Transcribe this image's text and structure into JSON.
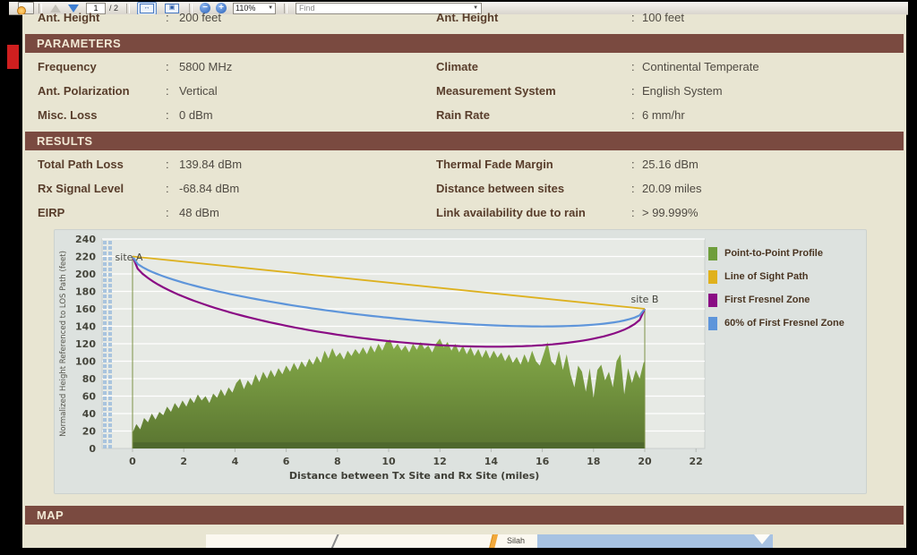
{
  "ui": {
    "colon": ":"
  },
  "toolbar": {
    "page_current": "1",
    "page_total": "/ 2",
    "zoom_level": "110%",
    "find_placeholder": "Find",
    "icons": {
      "zoom_out_glyph": "−",
      "zoom_in_glyph": "+",
      "dropdown_caret": "▼",
      "fit_width_glyph": "↔",
      "fit_page_glyph": "▣"
    }
  },
  "top_row": {
    "left_label": "Ant. Height",
    "left_value": "200 feet",
    "right_label": "Ant. Height",
    "right_value": "100 feet"
  },
  "sections": {
    "parameters": {
      "title": "PARAMETERS",
      "rows": [
        {
          "left_label": "Frequency",
          "left_value": "5800 MHz",
          "right_label": "Climate",
          "right_value": "Continental Temperate"
        },
        {
          "left_label": "Ant. Polarization",
          "left_value": "Vertical",
          "right_label": "Measurement System",
          "right_value": "English System"
        },
        {
          "left_label": "Misc. Loss",
          "left_value": "0 dBm",
          "right_label": "Rain Rate",
          "right_value": "6 mm/hr"
        }
      ]
    },
    "results": {
      "title": "RESULTS",
      "rows": [
        {
          "left_label": "Total Path Loss",
          "left_value": "139.84 dBm",
          "right_label": "Thermal Fade Margin",
          "right_value": "25.16 dBm"
        },
        {
          "left_label": "Rx Signal Level",
          "left_value": "-68.84 dBm",
          "right_label": "Distance between sites",
          "right_value": "20.09 miles"
        },
        {
          "left_label": "EIRP",
          "left_value": "48 dBm",
          "right_label": "Link availability due to rain",
          "right_value": "> 99.999%"
        }
      ]
    },
    "map": {
      "title": "MAP",
      "road_label": "Silah"
    }
  },
  "chart_data": {
    "type": "area",
    "xlabel": "Distance between Tx Site and Rx Site (miles)",
    "ylabel": "Normalized Height Referenced to LOS Path (feet)",
    "xlim": [
      0,
      22
    ],
    "ylim": [
      0,
      240
    ],
    "xticks": [
      0,
      2,
      4,
      6,
      8,
      10,
      12,
      14,
      16,
      18,
      20,
      22
    ],
    "yticks": [
      0,
      20,
      40,
      60,
      80,
      100,
      120,
      140,
      160,
      180,
      200,
      220,
      240
    ],
    "grid": "horizontal-white",
    "legend_position": "right",
    "site_a": {
      "label": "site A",
      "x": 0,
      "antenna_top": 220,
      "terrain": 18
    },
    "site_b": {
      "label": "site B",
      "x": 20,
      "antenna_top": 160,
      "terrain": 100
    },
    "los": {
      "x": [
        0,
        20
      ],
      "y": [
        220,
        160
      ]
    },
    "fresnel": {
      "max_radius_feet": 67,
      "sixty_pct_fraction": 0.6
    },
    "legend": [
      {
        "label": "Point-to-Point Profile",
        "color": "#6f9e3c"
      },
      {
        "label": "Line of Sight Path",
        "color": "#e0b11c"
      },
      {
        "label": "First Fresnel Zone",
        "color": "#8a0c84"
      },
      {
        "label": "60% of First Fresnel Zone",
        "color": "#5e95da"
      }
    ],
    "colors": {
      "plot_bg": "#e7eae5",
      "terrain_top": "#86ac49",
      "terrain_bottom": "#5a7531",
      "terrain_base_bar": "#4e682d",
      "mast": "#7d9148",
      "los": "#ddb11f",
      "fresnel": "#8a0c84",
      "fresnel60": "#5e95da",
      "hatch_blue": "#a9c4de",
      "tick_text": "#45453b"
    },
    "terrain_profile": [
      [
        0,
        18
      ],
      [
        0.15,
        28
      ],
      [
        0.3,
        22
      ],
      [
        0.45,
        35
      ],
      [
        0.6,
        30
      ],
      [
        0.75,
        40
      ],
      [
        0.9,
        33
      ],
      [
        1.05,
        42
      ],
      [
        1.2,
        38
      ],
      [
        1.35,
        48
      ],
      [
        1.5,
        42
      ],
      [
        1.65,
        52
      ],
      [
        1.8,
        46
      ],
      [
        1.95,
        55
      ],
      [
        2.1,
        48
      ],
      [
        2.25,
        58
      ],
      [
        2.4,
        52
      ],
      [
        2.55,
        62
      ],
      [
        2.7,
        55
      ],
      [
        2.85,
        60
      ],
      [
        3,
        52
      ],
      [
        3.15,
        63
      ],
      [
        3.3,
        58
      ],
      [
        3.45,
        68
      ],
      [
        3.6,
        60
      ],
      [
        3.75,
        70
      ],
      [
        3.9,
        64
      ],
      [
        4.05,
        75
      ],
      [
        4.2,
        80
      ],
      [
        4.35,
        68
      ],
      [
        4.5,
        78
      ],
      [
        4.65,
        72
      ],
      [
        4.8,
        85
      ],
      [
        4.95,
        76
      ],
      [
        5.1,
        88
      ],
      [
        5.25,
        80
      ],
      [
        5.4,
        90
      ],
      [
        5.55,
        82
      ],
      [
        5.7,
        92
      ],
      [
        5.85,
        85
      ],
      [
        6,
        95
      ],
      [
        6.15,
        88
      ],
      [
        6.3,
        98
      ],
      [
        6.45,
        90
      ],
      [
        6.6,
        100
      ],
      [
        6.75,
        93
      ],
      [
        6.9,
        103
      ],
      [
        7.05,
        96
      ],
      [
        7.2,
        106
      ],
      [
        7.35,
        98
      ],
      [
        7.5,
        112
      ],
      [
        7.65,
        103
      ],
      [
        7.8,
        115
      ],
      [
        7.95,
        105
      ],
      [
        8.1,
        110
      ],
      [
        8.25,
        102
      ],
      [
        8.4,
        112
      ],
      [
        8.55,
        106
      ],
      [
        8.7,
        114
      ],
      [
        8.85,
        108
      ],
      [
        9,
        116
      ],
      [
        9.15,
        108
      ],
      [
        9.3,
        118
      ],
      [
        9.45,
        110
      ],
      [
        9.6,
        120
      ],
      [
        9.75,
        112
      ],
      [
        9.9,
        122
      ],
      [
        10.05,
        125
      ],
      [
        10.2,
        114
      ],
      [
        10.35,
        120
      ],
      [
        10.5,
        112
      ],
      [
        10.65,
        118
      ],
      [
        10.8,
        110
      ],
      [
        10.95,
        120
      ],
      [
        11.1,
        113
      ],
      [
        11.25,
        122
      ],
      [
        11.4,
        114
      ],
      [
        11.55,
        118
      ],
      [
        11.7,
        110
      ],
      [
        11.85,
        120
      ],
      [
        12,
        126
      ],
      [
        12.15,
        116
      ],
      [
        12.3,
        122
      ],
      [
        12.45,
        112
      ],
      [
        12.6,
        120
      ],
      [
        12.75,
        110
      ],
      [
        12.9,
        118
      ],
      [
        13.05,
        108
      ],
      [
        13.2,
        116
      ],
      [
        13.35,
        106
      ],
      [
        13.5,
        114
      ],
      [
        13.65,
        104
      ],
      [
        13.8,
        113
      ],
      [
        13.95,
        103
      ],
      [
        14.1,
        112
      ],
      [
        14.25,
        104
      ],
      [
        14.4,
        110
      ],
      [
        14.55,
        100
      ],
      [
        14.7,
        108
      ],
      [
        14.85,
        98
      ],
      [
        15,
        105
      ],
      [
        15.15,
        96
      ],
      [
        15.3,
        108
      ],
      [
        15.45,
        98
      ],
      [
        15.6,
        112
      ],
      [
        15.75,
        100
      ],
      [
        15.9,
        95
      ],
      [
        16.05,
        108
      ],
      [
        16.2,
        122
      ],
      [
        16.35,
        100
      ],
      [
        16.5,
        95
      ],
      [
        16.65,
        112
      ],
      [
        16.8,
        90
      ],
      [
        16.95,
        108
      ],
      [
        17.1,
        85
      ],
      [
        17.25,
        70
      ],
      [
        17.4,
        95
      ],
      [
        17.55,
        88
      ],
      [
        17.7,
        65
      ],
      [
        17.85,
        92
      ],
      [
        18,
        58
      ],
      [
        18.15,
        90
      ],
      [
        18.3,
        96
      ],
      [
        18.45,
        78
      ],
      [
        18.6,
        88
      ],
      [
        18.75,
        70
      ],
      [
        18.9,
        100
      ],
      [
        19.05,
        108
      ],
      [
        19.2,
        62
      ],
      [
        19.35,
        92
      ],
      [
        19.5,
        75
      ],
      [
        19.65,
        90
      ],
      [
        19.8,
        80
      ],
      [
        19.95,
        98
      ],
      [
        20,
        100
      ]
    ]
  },
  "colors": {
    "band_maroon": "#7a4a40",
    "page_cream": "#e8e5d2",
    "label_brown": "#583d2b",
    "red_fragment": "#cf1f1f",
    "map_water": "#a7c2e2",
    "map_road": "#f2a93b"
  }
}
